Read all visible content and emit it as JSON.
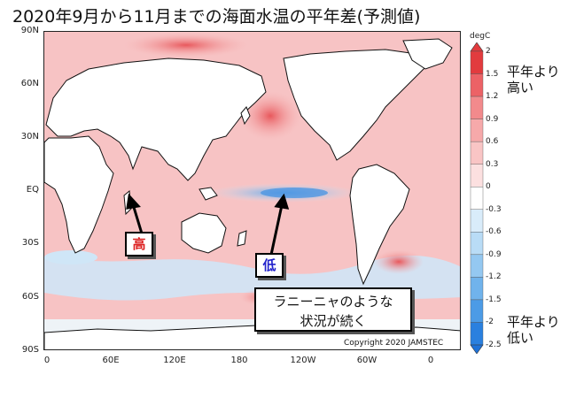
{
  "title": "2020年9月から11月までの海面水温の平年差(予測値)",
  "map": {
    "lat_labels": [
      "90N",
      "60N",
      "30N",
      "EQ",
      "30S",
      "60S",
      "90S"
    ],
    "lon_labels": [
      "0",
      "60E",
      "120E",
      "180",
      "120W",
      "60W",
      "0"
    ]
  },
  "colorbar": {
    "unit": "degC",
    "ticks": [
      "2",
      "1.5",
      "1.2",
      "0.9",
      "0.6",
      "0.3",
      "0",
      "-0.3",
      "-0.6",
      "-0.9",
      "-1.2",
      "-1.5",
      "-2",
      "-2.5"
    ],
    "colors": [
      "#e23b3e",
      "#ec6266",
      "#f28a8c",
      "#f6a9aa",
      "#f9c5c5",
      "#fce0e0",
      "#ffffff",
      "#d9ecfa",
      "#b9dcf6",
      "#94c8f1",
      "#70b3ec",
      "#4c9be6",
      "#2a80df"
    ],
    "high_note_1": "平年より",
    "high_note_2": "高い",
    "low_note_1": "平年より",
    "low_note_2": "低い"
  },
  "annotations": {
    "high": "高",
    "low": "低",
    "message_line1": "ラニーニャのような",
    "message_line2": "状況が続く",
    "copyright": "Copyright 2020 JAMSTEC"
  }
}
